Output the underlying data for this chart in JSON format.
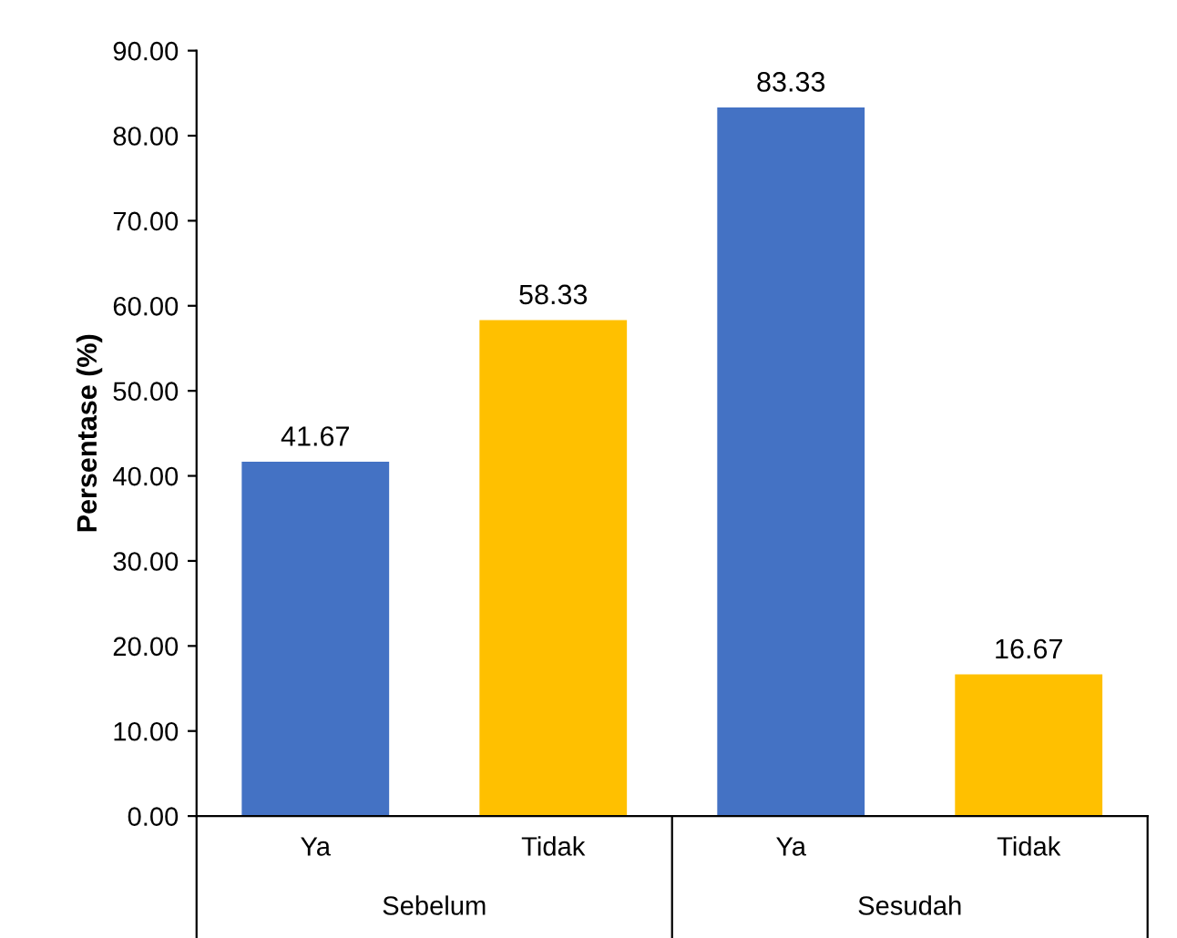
{
  "chart_data": {
    "type": "bar",
    "ylabel": "Persentase (%)",
    "categories": [
      "Ya",
      "Tidak",
      "Ya",
      "Tidak"
    ],
    "values": [
      41.67,
      58.33,
      83.33,
      16.67
    ],
    "colors": [
      "#4472c4",
      "#ffc000",
      "#4472c4",
      "#ffc000"
    ],
    "ylim": [
      0,
      90
    ],
    "yticks": [
      {
        "value": 0,
        "label": "0.00"
      },
      {
        "value": 10,
        "label": "10.00"
      },
      {
        "value": 20,
        "label": "20.00"
      },
      {
        "value": 30,
        "label": "30.00"
      },
      {
        "value": 40,
        "label": "40.00"
      },
      {
        "value": 50,
        "label": "50.00"
      },
      {
        "value": 60,
        "label": "60.00"
      },
      {
        "value": 70,
        "label": "70.00"
      },
      {
        "value": 80,
        "label": "80.00"
      },
      {
        "value": 90,
        "label": "90.00"
      }
    ],
    "data_labels": true,
    "annotations": [
      "Sebelum",
      "Sesudah"
    ]
  }
}
